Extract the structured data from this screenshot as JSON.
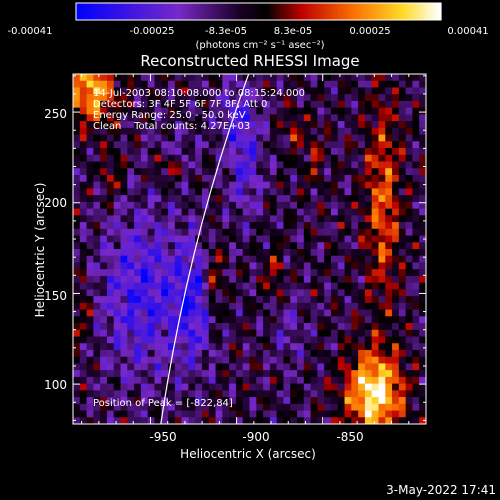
{
  "chart_data": {
    "type": "heatmap",
    "title": "Reconstructed RHESSI Image",
    "xlabel": "Heliocentric X (arcsec)",
    "ylabel": "Heliocentric Y (arcsec)",
    "xlim": [
      -995,
      -790
    ],
    "ylim": [
      78,
      271
    ],
    "xticks": [
      "-950",
      "-900",
      "-850"
    ],
    "yticks": [
      "100",
      "150",
      "200",
      "250"
    ],
    "colorbar": {
      "ticks": [
        "-0.00041",
        "-0.00025",
        "-8.3e-05",
        "8.3e-05",
        "0.00025",
        "0.00041"
      ],
      "units": "(photons cm⁻² s⁻¹ asec⁻²)",
      "range": [
        -0.00041,
        0.00041
      ]
    },
    "annotations": [
      "14-Jul-2003 08:10:08.000 to 08:15:24.000",
      "Detectors: 3F 4F 5F 6F 7F 8F, Att 0",
      "Energy Range: 25.0 - 50.0 keV",
      "Clean    Total counts: 4.27E+03"
    ],
    "peak_label": "Position of Peak = [-822,84]",
    "peak": [
      -822,
      84
    ],
    "grid": false
  },
  "footer": {
    "date": "3-May-2022 17:41"
  }
}
